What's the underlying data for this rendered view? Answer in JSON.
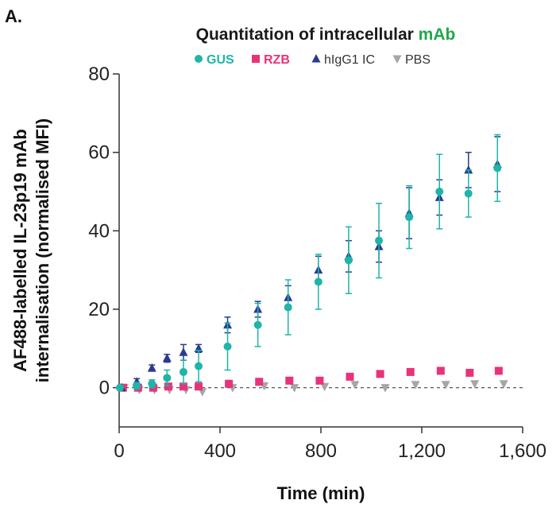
{
  "panel_label": "A.",
  "title": {
    "prefix": "Quantitation of intracellular ",
    "accent": "mAb"
  },
  "colors": {
    "GUS": "#1fb5a8",
    "RZB": "#e8337a",
    "hIgG1 IC": "#2b3a8f",
    "PBS": "#a6a6a6",
    "title_accent": "#22a84a"
  },
  "chart_data": {
    "type": "scatter",
    "title": "Quantitation of intracellular mAb",
    "xlabel": "Time (min)",
    "ylabel_lines": [
      "AF488-labelled IL-23p19 mAb",
      "internalisation (normalised MFI)"
    ],
    "xlim": [
      0,
      1600
    ],
    "ylim": [
      -10,
      80
    ],
    "x_ticks": [
      0,
      400,
      800,
      1200,
      1600
    ],
    "x_tick_labels": [
      "0",
      "400",
      "800",
      "1,200",
      "1,600"
    ],
    "y_ticks": [
      0,
      20,
      40,
      60,
      80
    ],
    "y_tick_labels": [
      "0",
      "20",
      "40",
      "60",
      "80"
    ],
    "zero_line": "dashed",
    "grid": false,
    "legend_position": "top-center",
    "series": [
      {
        "name": "GUS",
        "marker": "circle",
        "points": [
          {
            "x": 3,
            "y": 0,
            "err": 0.5
          },
          {
            "x": 70,
            "y": 0.5,
            "err": 0.8
          },
          {
            "x": 130,
            "y": 1,
            "err": 1
          },
          {
            "x": 190,
            "y": 2.5,
            "err": 2
          },
          {
            "x": 255,
            "y": 4,
            "err": 3
          },
          {
            "x": 315,
            "y": 5.5,
            "err": 4
          },
          {
            "x": 430,
            "y": 10.5,
            "err": 6
          },
          {
            "x": 550,
            "y": 16,
            "err": 5.5
          },
          {
            "x": 670,
            "y": 20.5,
            "err": 7
          },
          {
            "x": 790,
            "y": 27,
            "err": 7
          },
          {
            "x": 910,
            "y": 32.5,
            "err": 8.5
          },
          {
            "x": 1030,
            "y": 37.5,
            "err": 9.5
          },
          {
            "x": 1150,
            "y": 43.5,
            "err": 8
          },
          {
            "x": 1270,
            "y": 50,
            "err": 9.5
          },
          {
            "x": 1385,
            "y": 49.5,
            "err": 6
          },
          {
            "x": 1500,
            "y": 56,
            "err": 8.5
          }
        ]
      },
      {
        "name": "RZB",
        "marker": "square",
        "points": [
          {
            "x": 15,
            "y": 0
          },
          {
            "x": 75,
            "y": 0
          },
          {
            "x": 135,
            "y": 0
          },
          {
            "x": 195,
            "y": 0.3
          },
          {
            "x": 255,
            "y": 0.3
          },
          {
            "x": 315,
            "y": 0.3
          },
          {
            "x": 435,
            "y": 1
          },
          {
            "x": 555,
            "y": 1.5
          },
          {
            "x": 675,
            "y": 1.8
          },
          {
            "x": 795,
            "y": 1.8
          },
          {
            "x": 915,
            "y": 2.8
          },
          {
            "x": 1035,
            "y": 3.5
          },
          {
            "x": 1155,
            "y": 4
          },
          {
            "x": 1275,
            "y": 4.3
          },
          {
            "x": 1390,
            "y": 3.8
          },
          {
            "x": 1505,
            "y": 4.3
          }
        ]
      },
      {
        "name": "hIgG1 IC",
        "marker": "triangle-up",
        "points": [
          {
            "x": 10,
            "y": 0
          },
          {
            "x": 70,
            "y": 1.5,
            "err": 0.8
          },
          {
            "x": 130,
            "y": 5,
            "err": 0.8
          },
          {
            "x": 190,
            "y": 7.5,
            "err": 1
          },
          {
            "x": 255,
            "y": 9,
            "err": 2
          },
          {
            "x": 315,
            "y": 10,
            "err": 1
          },
          {
            "x": 430,
            "y": 16,
            "err": 2
          },
          {
            "x": 550,
            "y": 20,
            "err": 2
          },
          {
            "x": 670,
            "y": 23,
            "err": 3
          },
          {
            "x": 790,
            "y": 30,
            "err": 3.5
          },
          {
            "x": 910,
            "y": 33.5,
            "err": 4
          },
          {
            "x": 1030,
            "y": 36,
            "err": 4
          },
          {
            "x": 1150,
            "y": 44.5,
            "err": 6.5
          },
          {
            "x": 1270,
            "y": 48.5,
            "err": 4.5
          },
          {
            "x": 1385,
            "y": 55.5,
            "err": 4.5
          },
          {
            "x": 1500,
            "y": 57,
            "err": 7
          }
        ]
      },
      {
        "name": "PBS",
        "marker": "triangle-down",
        "points": [
          {
            "x": 20,
            "y": 0
          },
          {
            "x": 80,
            "y": -0.5
          },
          {
            "x": 140,
            "y": -0.5
          },
          {
            "x": 200,
            "y": -0.5
          },
          {
            "x": 265,
            "y": -0.5
          },
          {
            "x": 330,
            "y": -1
          },
          {
            "x": 450,
            "y": 0
          },
          {
            "x": 575,
            "y": 0.5
          },
          {
            "x": 695,
            "y": 0
          },
          {
            "x": 815,
            "y": 0.3
          },
          {
            "x": 935,
            "y": 0.8
          },
          {
            "x": 1055,
            "y": 0
          },
          {
            "x": 1175,
            "y": 0.8
          },
          {
            "x": 1295,
            "y": 0.8
          },
          {
            "x": 1410,
            "y": 1
          },
          {
            "x": 1525,
            "y": 1
          }
        ]
      }
    ]
  }
}
